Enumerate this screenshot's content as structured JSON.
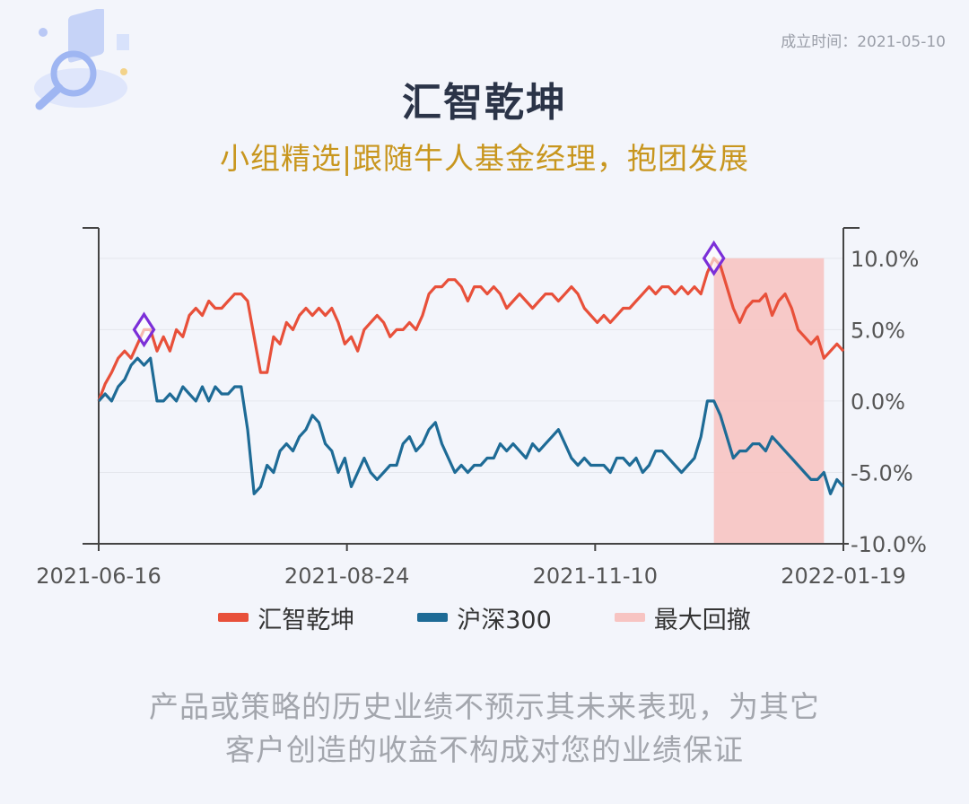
{
  "header": {
    "founded_date": "成立时间：2021-05-10",
    "title": "汇智乾坤",
    "subtitle": "小组精选|跟随牛人基金经理，抱团发展"
  },
  "colors": {
    "fund": "#e8503a",
    "index": "#1e6b96",
    "drawdown": "#f7c4c2",
    "marker": "#7b2fd8",
    "title": "#2b3448",
    "subtitle": "#c8961e"
  },
  "legend": {
    "fund": "汇智乾坤",
    "index": "沪深300",
    "drawdown": "最大回撤"
  },
  "disclaimer": {
    "line1": "产品或策略的历史业绩不预示其未来表现，为其它",
    "line2": "客户创造的收益不构成对您的业绩保证"
  },
  "chart_data": {
    "type": "line",
    "x_ticks": [
      "2021-06-16",
      "2021-08-24",
      "2021-11-10",
      "2022-01-19"
    ],
    "y_ticks": [
      "10.0%",
      "5.0%",
      "0.0%",
      "-5.0%",
      "-10.0%"
    ],
    "ylim": [
      -10,
      12
    ],
    "y_axis_position": "right",
    "grid": true,
    "legend_position": "bottom",
    "series": [
      {
        "name": "汇智乾坤",
        "values": [
          0.0,
          1.2,
          2.0,
          3.0,
          3.5,
          3.0,
          4.0,
          5.0,
          5.0,
          3.5,
          4.5,
          3.5,
          5.0,
          4.5,
          6.0,
          6.5,
          6.0,
          7.0,
          6.5,
          6.5,
          7.0,
          7.5,
          7.5,
          7.0,
          4.5,
          2.0,
          2.0,
          4.5,
          4.0,
          5.5,
          5.0,
          6.0,
          6.5,
          6.0,
          6.5,
          6.0,
          6.5,
          5.5,
          4.0,
          4.5,
          3.5,
          5.0,
          5.5,
          6.0,
          5.5,
          4.5,
          5.0,
          5.0,
          5.5,
          5.0,
          6.0,
          7.5,
          8.0,
          8.0,
          8.5,
          8.5,
          8.0,
          7.0,
          8.0,
          8.0,
          7.5,
          8.0,
          7.5,
          6.5,
          7.0,
          7.5,
          7.0,
          6.5,
          7.0,
          7.5,
          7.5,
          7.0,
          7.5,
          8.0,
          7.5,
          6.5,
          6.0,
          5.5,
          6.0,
          5.5,
          6.0,
          6.5,
          6.5,
          7.0,
          7.5,
          8.0,
          7.5,
          8.0,
          8.0,
          7.5,
          8.0,
          7.5,
          8.0,
          7.5,
          9.0,
          10.0,
          9.5,
          8.0,
          6.5,
          5.5,
          6.5,
          7.0,
          7.0,
          7.5,
          6.0,
          7.0,
          7.5,
          6.5,
          5.0,
          4.5,
          4.0,
          4.5,
          3.0,
          3.5,
          4.0,
          3.5
        ],
        "color": "#e8503a"
      },
      {
        "name": "沪深300",
        "values": [
          0.0,
          0.5,
          0.0,
          1.0,
          1.5,
          2.5,
          3.0,
          2.5,
          3.0,
          0.0,
          0.0,
          0.5,
          0.0,
          1.0,
          0.5,
          0.0,
          1.0,
          0.0,
          1.0,
          0.5,
          0.5,
          1.0,
          1.0,
          -2.0,
          -6.5,
          -6.0,
          -4.5,
          -5.0,
          -3.5,
          -3.0,
          -3.5,
          -2.5,
          -2.0,
          -1.0,
          -1.5,
          -3.0,
          -3.5,
          -5.0,
          -4.0,
          -6.0,
          -5.0,
          -4.0,
          -5.0,
          -5.5,
          -5.0,
          -4.5,
          -4.5,
          -3.0,
          -2.5,
          -3.5,
          -3.0,
          -2.0,
          -1.5,
          -3.0,
          -4.0,
          -5.0,
          -4.5,
          -5.0,
          -4.5,
          -4.5,
          -4.0,
          -4.0,
          -3.0,
          -3.5,
          -3.0,
          -3.5,
          -4.0,
          -3.0,
          -3.5,
          -3.0,
          -2.5,
          -2.0,
          -3.0,
          -4.0,
          -4.5,
          -4.0,
          -4.5,
          -4.5,
          -4.5,
          -5.0,
          -4.0,
          -4.0,
          -4.5,
          -4.0,
          -5.0,
          -4.5,
          -3.5,
          -3.5,
          -4.0,
          -4.5,
          -5.0,
          -4.5,
          -4.0,
          -2.5,
          0.0,
          0.0,
          -1.0,
          -2.5,
          -4.0,
          -3.5,
          -3.5,
          -3.0,
          -3.0,
          -3.5,
          -2.5,
          -3.0,
          -3.5,
          -4.0,
          -4.5,
          -5.0,
          -5.5,
          -5.5,
          -5.0,
          -6.5,
          -5.5,
          -6.0
        ],
        "color": "#1e6b96"
      }
    ],
    "max_drawdown": {
      "start_index": 95,
      "end_index": 112,
      "label": "最大回撤"
    },
    "markers": [
      {
        "series": "汇智乾坤",
        "index": 7,
        "symbol": "diamond"
      },
      {
        "series": "汇智乾坤",
        "index": 95,
        "symbol": "diamond"
      }
    ]
  }
}
